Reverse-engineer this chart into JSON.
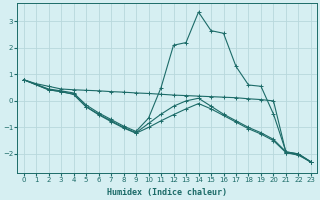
{
  "xlabel": "Humidex (Indice chaleur)",
  "background_color": "#d6eff2",
  "grid_color": "#b8d8dc",
  "line_color": "#1c6b68",
  "xlim": [
    -0.5,
    23.5
  ],
  "ylim": [
    -2.7,
    3.7
  ],
  "yticks": [
    -2,
    -1,
    0,
    1,
    2,
    3
  ],
  "xticks": [
    0,
    1,
    2,
    3,
    4,
    5,
    6,
    7,
    8,
    9,
    10,
    11,
    12,
    13,
    14,
    15,
    16,
    17,
    18,
    19,
    20,
    21,
    22,
    23
  ],
  "lines": [
    {
      "x": [
        0,
        1,
        2,
        3,
        4,
        5,
        6,
        7,
        8,
        9,
        10,
        11,
        12,
        13,
        14,
        15,
        16,
        17,
        18,
        19,
        20,
        21,
        22,
        23
      ],
      "y": [
        0.8,
        0.65,
        0.55,
        0.45,
        0.42,
        0.4,
        0.38,
        0.35,
        0.33,
        0.3,
        0.28,
        0.25,
        0.22,
        0.2,
        0.18,
        0.16,
        0.14,
        0.12,
        0.08,
        0.05,
        0.0,
        -1.95,
        -2.05,
        -2.3
      ]
    },
    {
      "x": [
        0,
        2,
        3,
        4,
        5,
        6,
        7,
        8,
        9,
        10,
        11,
        12,
        13,
        14,
        15,
        16,
        17,
        18,
        19,
        20,
        21,
        22,
        23
      ],
      "y": [
        0.8,
        0.45,
        0.38,
        0.3,
        -0.15,
        -0.45,
        -0.7,
        -0.95,
        -1.15,
        -0.65,
        0.5,
        2.1,
        2.2,
        3.35,
        2.65,
        2.55,
        1.3,
        0.6,
        0.55,
        -0.5,
        -1.92,
        -2.0,
        -2.3
      ]
    },
    {
      "x": [
        0,
        2,
        3,
        4,
        5,
        6,
        7,
        8,
        9,
        10,
        11,
        12,
        13,
        14,
        15,
        16,
        17,
        18,
        19,
        20,
        21,
        22,
        23
      ],
      "y": [
        0.8,
        0.42,
        0.35,
        0.25,
        -0.22,
        -0.5,
        -0.75,
        -1.0,
        -1.2,
        -0.85,
        -0.5,
        -0.2,
        0.0,
        0.1,
        -0.2,
        -0.5,
        -0.75,
        -1.0,
        -1.2,
        -1.45,
        -1.92,
        -2.0,
        -2.3
      ]
    },
    {
      "x": [
        0,
        2,
        3,
        4,
        5,
        6,
        7,
        8,
        9,
        10,
        11,
        12,
        13,
        14,
        15,
        16,
        17,
        18,
        19,
        20,
        21,
        22,
        23
      ],
      "y": [
        0.8,
        0.42,
        0.35,
        0.25,
        -0.22,
        -0.52,
        -0.78,
        -1.02,
        -1.22,
        -1.0,
        -0.75,
        -0.52,
        -0.3,
        -0.1,
        -0.3,
        -0.55,
        -0.8,
        -1.05,
        -1.25,
        -1.5,
        -1.95,
        -2.02,
        -2.32
      ]
    }
  ]
}
